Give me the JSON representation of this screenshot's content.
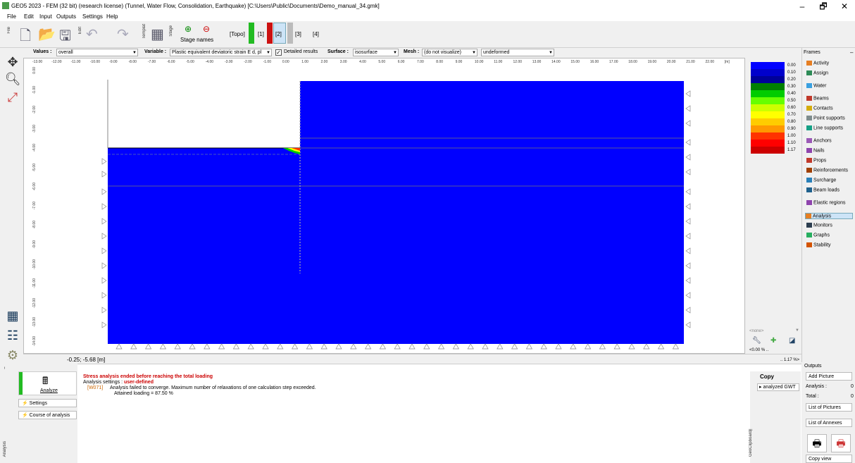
{
  "window": {
    "title": "GEO5 2023 - FEM (32 bit) (research license) (Tunnel, Water Flow, Consolidation, Earthquake) [C:\\Users\\Public\\Documents\\Demo_manual_34.gmk]",
    "min": "–",
    "max": "🗗",
    "close": "✕"
  },
  "menu": [
    "File",
    "Edit",
    "Input",
    "Outputs",
    "Settings",
    "Help"
  ],
  "toolbar": {
    "file": "File",
    "edit": "Edit",
    "template": "Templat",
    "stage": "Stage",
    "stage_names": "Stage names",
    "topo": "[Topo]",
    "s1": "[1]",
    "s2": "[2]",
    "s3": "[3]",
    "s4": "[4]"
  },
  "options": {
    "values_label": "Values :",
    "values": "overall",
    "variable_label": "Variable :",
    "variable": "Plastic equivalent deviatoric strain E d, pl",
    "detailed": "Detailed results",
    "surface_label": "Surface :",
    "surface": "isosurface",
    "mesh_label": "Mesh :",
    "mesh": "(do not visualize)",
    "deform": "undeformed"
  },
  "ruler_x": [
    "-13.00",
    "-12.00",
    "-11.00",
    "-10.00",
    "-9.00",
    "-8.00",
    "-7.00",
    "-6.00",
    "-5.00",
    "-4.00",
    "-3.00",
    "-2.00",
    "-1.00",
    "0.00",
    "1.00",
    "2.00",
    "3.00",
    "4.00",
    "5.00",
    "6.00",
    "7.00",
    "8.00",
    "9.00",
    "10.00",
    "11.00",
    "12.00",
    "13.00",
    "14.00",
    "15.00",
    "16.00",
    "17.00",
    "18.00",
    "19.00",
    "20.00",
    "21.00",
    "22.00",
    "[m]"
  ],
  "ruler_y": [
    "0.00",
    "-1.00",
    "-2.00",
    "-3.00",
    "-4.00",
    "-5.00",
    "-6.00",
    "-7.00",
    "-8.00",
    "-9.00",
    "-10.00",
    "-11.00",
    "-12.00",
    "-13.00",
    "-14.00"
  ],
  "coord": "-0.25; -5.68 [m]",
  "legend": {
    "values": [
      "0.00",
      "0.10",
      "0.20",
      "0.30",
      "0.40",
      "0.50",
      "0.60",
      "0.70",
      "0.80",
      "0.90",
      "1.00",
      "1.10",
      "1.17"
    ],
    "colors": [
      "#0000ff",
      "#0000cc",
      "#000099",
      "#008000",
      "#00cc00",
      "#66ff00",
      "#ccff00",
      "#ffff00",
      "#ffcc00",
      "#ff9900",
      "#ff3300",
      "#ff0000",
      "#cc0000"
    ],
    "none": "<none>",
    "min_pct": "<0.00 % ..",
    "max_pct": ".. 1.17 %>"
  },
  "frames": {
    "title": "Frames",
    "items": [
      "Activity",
      "Assign",
      "Water",
      "Beams",
      "Contacts",
      "Point supports",
      "Line supports",
      "Anchors",
      "Nails",
      "Props",
      "Reinforcements",
      "Surcharge",
      "Beam loads",
      "Elastic regions",
      "Analysis",
      "Monitors",
      "Graphs",
      "Stability"
    ],
    "active": "Analysis"
  },
  "analysis": {
    "analyze": "Analyze",
    "settings": "Settings",
    "course": "Course of analysis",
    "msg_title": "Stress analysis ended before reaching the total loading",
    "msg_settings_label": "Analysis settings : ",
    "msg_settings_value": "user-defined",
    "warning_code": "[W071]",
    "warning_text": "Analysis failed to converge. Maximum number of relaxations of one calculation step exceeded.",
    "attained": "Attained loading = 87.50 %",
    "vertical_tab": "Analysis"
  },
  "clipboard": {
    "copy": "Copy",
    "analyzed": "analyzed GWT",
    "vertical": "GeoClipboard™"
  },
  "outputs": {
    "title": "Outputs",
    "add_picture": "Add Picture",
    "analysis_label": "Analysis :",
    "analysis_val": "0",
    "total_label": "Total :",
    "total_val": "0",
    "list_pictures": "List of Pictures",
    "list_annexes": "List of Annexes",
    "copy_view": "Copy view"
  }
}
